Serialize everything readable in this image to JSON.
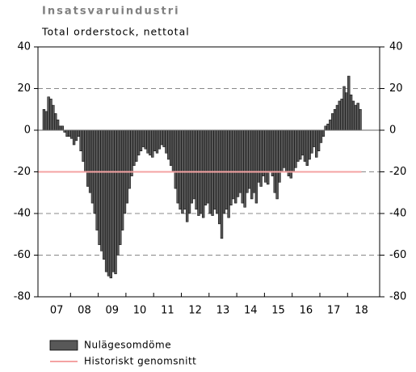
{
  "chart_data": {
    "type": "bar",
    "title": "Insatsvaruindustri",
    "subtitle": "Total orderstock, nettotal",
    "x_labels": [
      "07",
      "08",
      "09",
      "10",
      "11",
      "12",
      "13",
      "14",
      "15",
      "16",
      "17",
      "18"
    ],
    "ylim": [
      -80,
      40
    ],
    "yticks": [
      40,
      20,
      0,
      -20,
      -40,
      -60,
      -80
    ],
    "y2lim": [
      -80,
      40
    ],
    "y2ticks": [
      40,
      20,
      0,
      -20,
      -40,
      -60,
      -80
    ],
    "grid": true,
    "series": [
      {
        "name": "Nulägesomdöme",
        "color": "#585858",
        "values": [
          10,
          9,
          16,
          15,
          12,
          8,
          5,
          2,
          2,
          -1,
          -3,
          -3,
          -4,
          -7,
          -5,
          -3,
          -10,
          -15,
          -20,
          -27,
          -30,
          -35,
          -40,
          -48,
          -55,
          -58,
          -62,
          -68,
          -70,
          -71,
          -68,
          -69,
          -60,
          -55,
          -48,
          -40,
          -35,
          -28,
          -22,
          -17,
          -15,
          -12,
          -10,
          -8,
          -9,
          -11,
          -12,
          -13,
          -10,
          -11,
          -9,
          -7,
          -8,
          -11,
          -14,
          -17,
          -20,
          -28,
          -35,
          -38,
          -40,
          -38,
          -44,
          -40,
          -35,
          -33,
          -38,
          -41,
          -40,
          -42,
          -36,
          -35,
          -40,
          -41,
          -38,
          -40,
          -45,
          -52,
          -40,
          -38,
          -42,
          -36,
          -33,
          -35,
          -32,
          -30,
          -35,
          -37,
          -30,
          -28,
          -33,
          -30,
          -35,
          -25,
          -27,
          -22,
          -25,
          -26,
          -20,
          -22,
          -30,
          -33,
          -25,
          -20,
          -18,
          -20,
          -22,
          -23,
          -20,
          -18,
          -15,
          -14,
          -12,
          -15,
          -17,
          -14,
          -11,
          -8,
          -13,
          -10,
          -6,
          -3,
          2,
          3,
          5,
          8,
          10,
          12,
          14,
          15,
          21,
          18,
          26,
          17,
          14,
          12,
          13,
          10
        ]
      },
      {
        "name": "Historiskt genomsnitt",
        "color": "#f4a3a3",
        "value": -20
      }
    ]
  }
}
